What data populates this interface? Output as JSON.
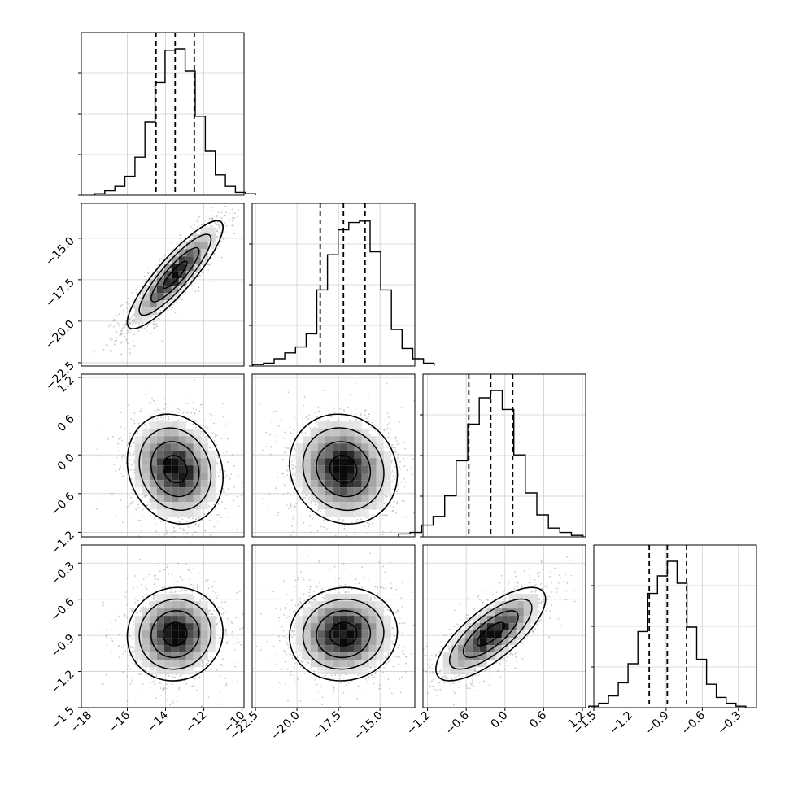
{
  "chart_data": {
    "type": "corner",
    "description_params": 4,
    "histogram_color": "#000000",
    "density_color": "#000000",
    "scatter_color": "#9a9a9a",
    "grid": true,
    "params": [
      {
        "range": [
          -18.4,
          -9.9
        ],
        "ticks": [
          -18,
          -16,
          -14,
          -12,
          -10
        ],
        "tick_labels": [
          "−18",
          "−16",
          "−14",
          "−12",
          "−10"
        ],
        "median": -13.5,
        "quantile_16": -14.5,
        "quantile_84": -12.5,
        "sigma": 1.0,
        "hist_relative": [
          0.01,
          0.03,
          0.06,
          0.13,
          0.26,
          0.5,
          0.77,
          0.99,
          1.0,
          0.85,
          0.54,
          0.3,
          0.14,
          0.06,
          0.02,
          0.01
        ]
      },
      {
        "range": [
          -22.7,
          -12.9
        ],
        "ticks": [
          -22.5,
          -20.0,
          -17.5,
          -15.0
        ],
        "tick_labels": [
          "−22.5",
          "−20.0",
          "−17.5",
          "−15.0"
        ],
        "median": -17.2,
        "quantile_16": -18.6,
        "quantile_84": -15.9,
        "sigma": 1.3,
        "hist_relative": [
          0.01,
          0.02,
          0.05,
          0.09,
          0.13,
          0.22,
          0.52,
          0.76,
          0.93,
          0.98,
          0.99,
          0.78,
          0.52,
          0.25,
          0.12,
          0.05,
          0.02
        ]
      },
      {
        "range": [
          -1.27,
          1.25
        ],
        "ticks": [
          -1.2,
          -0.6,
          0.0,
          0.6,
          1.2
        ],
        "tick_labels": [
          "−1.2",
          "−0.6",
          "0.0",
          "0.6",
          "1.2"
        ],
        "median": -0.22,
        "quantile_16": -0.56,
        "quantile_84": 0.12,
        "sigma": 0.34,
        "hist_relative": [
          0.02,
          0.03,
          0.08,
          0.14,
          0.28,
          0.52,
          0.77,
          0.95,
          1.0,
          0.87,
          0.56,
          0.3,
          0.15,
          0.06,
          0.03,
          0.01
        ]
      },
      {
        "range": [
          -1.5,
          -0.15
        ],
        "ticks": [
          -1.5,
          -1.2,
          -0.9,
          -0.6,
          -0.3
        ],
        "tick_labels": [
          "−1.5",
          "−1.2",
          "−0.9",
          "−0.6",
          "−0.3"
        ],
        "median": -0.89,
        "quantile_16": -1.04,
        "quantile_84": -0.73,
        "sigma": 0.155,
        "hist_relative": [
          0.01,
          0.03,
          0.08,
          0.17,
          0.3,
          0.52,
          0.78,
          0.9,
          1.0,
          0.85,
          0.55,
          0.33,
          0.16,
          0.07,
          0.03,
          0.01
        ]
      }
    ],
    "correlations": [
      [
        0,
        1,
        0.88
      ],
      [
        0,
        2,
        -0.15
      ],
      [
        0,
        3,
        0.05
      ],
      [
        1,
        2,
        -0.1
      ],
      [
        1,
        3,
        0.05
      ],
      [
        2,
        3,
        0.75
      ]
    ]
  }
}
